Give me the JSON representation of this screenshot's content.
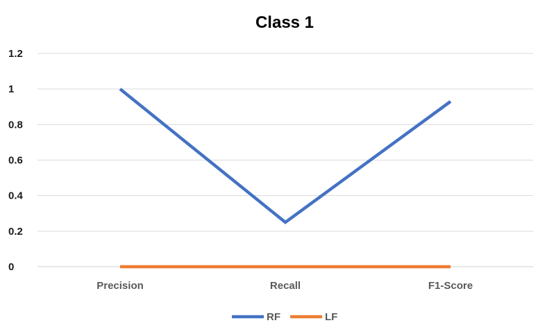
{
  "chart_data": {
    "type": "line",
    "title": "Class 1",
    "xlabel": "",
    "ylabel": "",
    "categories": [
      "Precision",
      "Recall",
      "F1-Score"
    ],
    "series": [
      {
        "name": "RF",
        "values": [
          1.0,
          0.25,
          0.93
        ],
        "color": "#4472C4"
      },
      {
        "name": "LF",
        "values": [
          0,
          0,
          0
        ],
        "color": "#ED7D31"
      }
    ],
    "ylim": [
      0,
      1.2
    ],
    "yticks": [
      0,
      0.2,
      0.4,
      0.6,
      0.8,
      1,
      1.2
    ],
    "ytick_labels": [
      "0",
      "0.2",
      "0.4",
      "0.6",
      "0.8",
      "1",
      "1.2"
    ],
    "grid": true,
    "legend": "bottom-center"
  }
}
